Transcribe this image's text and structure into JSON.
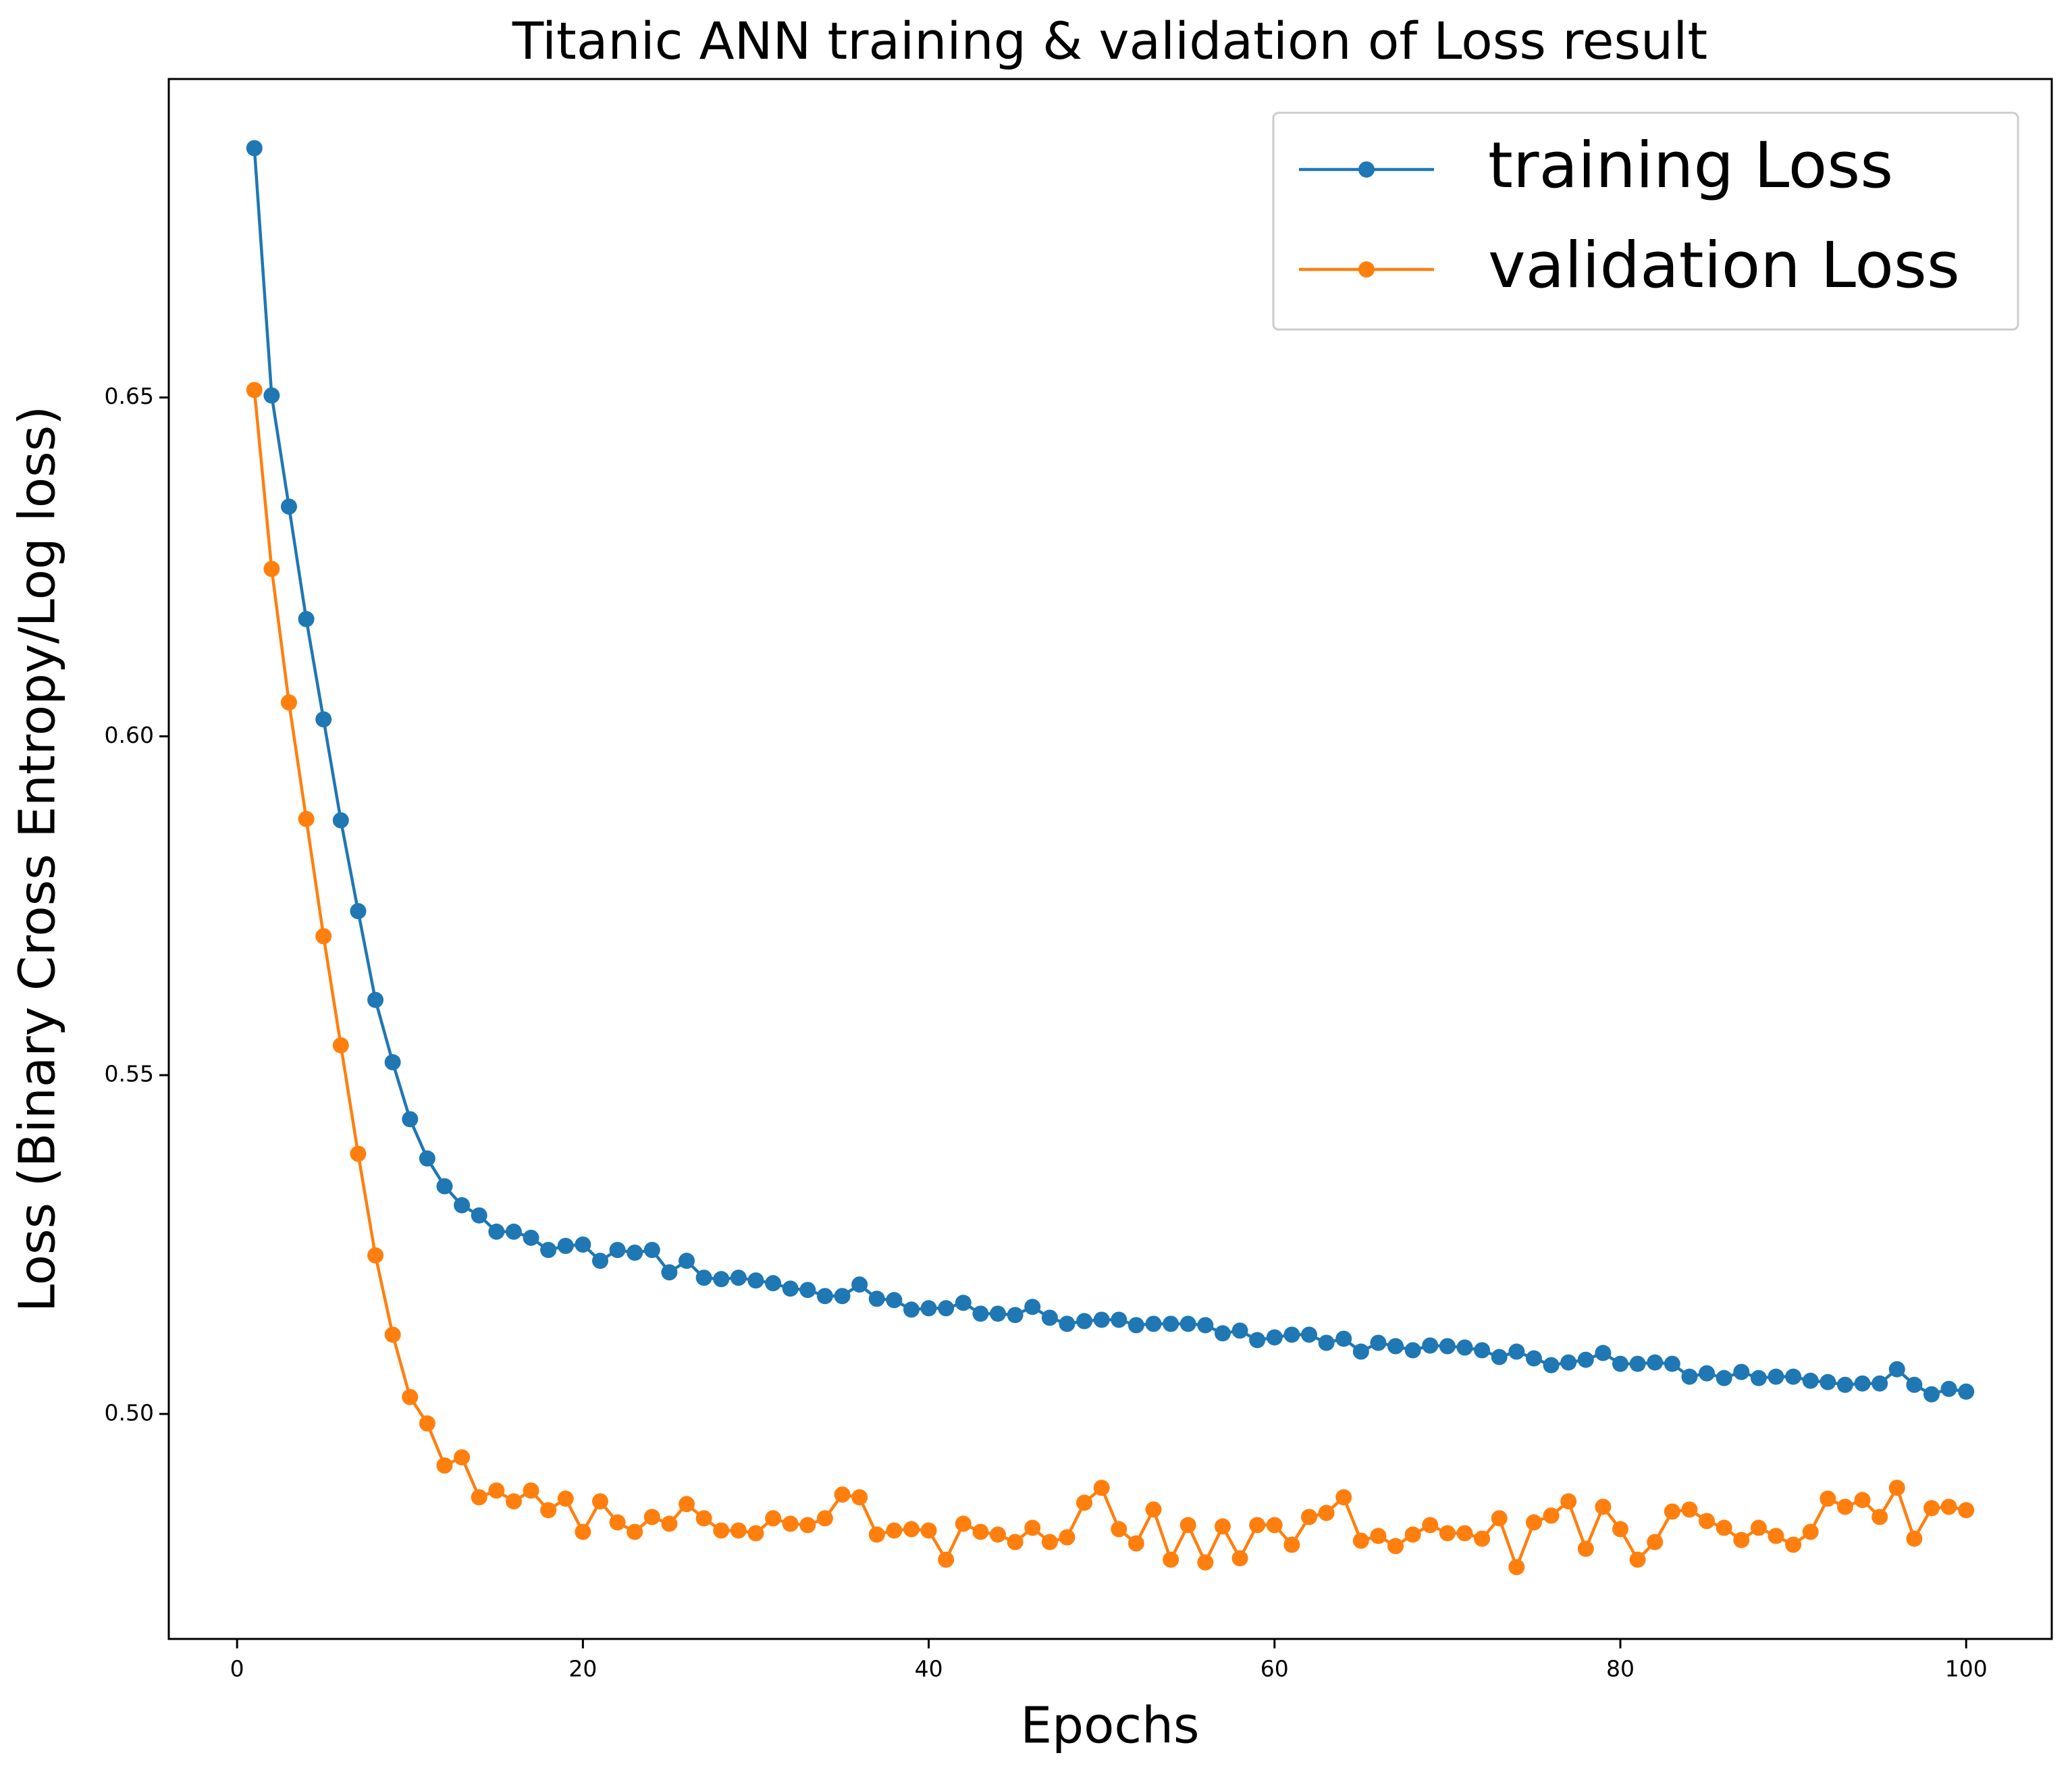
{
  "chart_data": {
    "type": "line",
    "title": "Titanic ANN training & validation of Loss result",
    "x_label": "Epochs",
    "y_label": "Loss (Binary Cross Entropy/Log loss)",
    "x": [
      1,
      2,
      3,
      4,
      5,
      6,
      7,
      8,
      9,
      10,
      11,
      12,
      13,
      14,
      15,
      16,
      17,
      18,
      19,
      20,
      21,
      22,
      23,
      24,
      25,
      26,
      27,
      28,
      29,
      30,
      31,
      32,
      33,
      34,
      35,
      36,
      37,
      38,
      39,
      40,
      41,
      42,
      43,
      44,
      45,
      46,
      47,
      48,
      49,
      50,
      51,
      52,
      53,
      54,
      55,
      56,
      57,
      58,
      59,
      60,
      61,
      62,
      63,
      64,
      65,
      66,
      67,
      68,
      69,
      70,
      71,
      72,
      73,
      74,
      75,
      76,
      77,
      78,
      79,
      80,
      81,
      82,
      83,
      84,
      85,
      86,
      87,
      88,
      89,
      90,
      91,
      92,
      93,
      94,
      95,
      96,
      97,
      98,
      99,
      100
    ],
    "series": [
      {
        "name": "training Loss",
        "color": "#1f77b4",
        "values": [
          0.6868,
          0.6503,
          0.6339,
          0.6173,
          0.6025,
          0.5876,
          0.5742,
          0.5611,
          0.5519,
          0.5435,
          0.5377,
          0.5336,
          0.5308,
          0.5293,
          0.5269,
          0.5269,
          0.526,
          0.5242,
          0.5248,
          0.525,
          0.5226,
          0.5242,
          0.5238,
          0.5242,
          0.5209,
          0.5226,
          0.5201,
          0.5199,
          0.5201,
          0.5197,
          0.5193,
          0.5185,
          0.5183,
          0.5174,
          0.5174,
          0.5191,
          0.517,
          0.5168,
          0.5154,
          0.5156,
          0.5156,
          0.5164,
          0.5148,
          0.5148,
          0.5146,
          0.5158,
          0.5142,
          0.5133,
          0.5137,
          0.5139,
          0.5139,
          0.5131,
          0.5133,
          0.5133,
          0.5133,
          0.5131,
          0.5119,
          0.5123,
          0.5109,
          0.5113,
          0.5117,
          0.5117,
          0.5105,
          0.5111,
          0.5092,
          0.5105,
          0.51,
          0.5094,
          0.5101,
          0.51,
          0.5098,
          0.5094,
          0.5084,
          0.5092,
          0.5082,
          0.5072,
          0.5076,
          0.508,
          0.509,
          0.5074,
          0.5074,
          0.5076,
          0.5074,
          0.5055,
          0.506,
          0.5053,
          0.5062,
          0.5053,
          0.5055,
          0.5055,
          0.5049,
          0.5047,
          0.5043,
          0.5045,
          0.5045,
          0.5066,
          0.5043,
          0.5029,
          0.5037,
          0.5033
        ]
      },
      {
        "name": "validation Loss",
        "color": "#ff7f0e",
        "values": [
          0.6511,
          0.6247,
          0.605,
          0.5878,
          0.5705,
          0.5544,
          0.5384,
          0.5234,
          0.5117,
          0.5025,
          0.4986,
          0.4924,
          0.4936,
          0.4877,
          0.4887,
          0.4871,
          0.4887,
          0.4858,
          0.4875,
          0.4826,
          0.4871,
          0.484,
          0.4826,
          0.4848,
          0.4838,
          0.4867,
          0.4846,
          0.4828,
          0.4828,
          0.4824,
          0.4846,
          0.4838,
          0.4836,
          0.4846,
          0.4881,
          0.4877,
          0.4822,
          0.4828,
          0.483,
          0.4828,
          0.4785,
          0.4838,
          0.4826,
          0.4822,
          0.4811,
          0.4832,
          0.4811,
          0.4818,
          0.4869,
          0.4891,
          0.483,
          0.4809,
          0.4859,
          0.4785,
          0.4836,
          0.4781,
          0.4834,
          0.4787,
          0.4836,
          0.4836,
          0.4807,
          0.4848,
          0.4854,
          0.4877,
          0.4813,
          0.482,
          0.4805,
          0.4822,
          0.4836,
          0.4824,
          0.4824,
          0.4816,
          0.4846,
          0.4774,
          0.484,
          0.485,
          0.4871,
          0.4801,
          0.4863,
          0.483,
          0.4785,
          0.4811,
          0.4856,
          0.4859,
          0.4842,
          0.4832,
          0.4814,
          0.4832,
          0.482,
          0.4807,
          0.4826,
          0.4875,
          0.4863,
          0.4873,
          0.4848,
          0.4891,
          0.4816,
          0.4861,
          0.4863,
          0.4858
        ]
      }
    ],
    "xlim": [
      -3.95,
      104.95
    ],
    "ylim": [
      0.4668,
      0.697
    ],
    "xticks": [
      0,
      20,
      40,
      60,
      80,
      100
    ],
    "yticks": [
      {
        "value": 0.5,
        "label": "0.50"
      },
      0.55,
      {
        "value": 0.6,
        "label": "0.60"
      },
      0.65
    ],
    "legend": "upper right",
    "markers": true
  }
}
